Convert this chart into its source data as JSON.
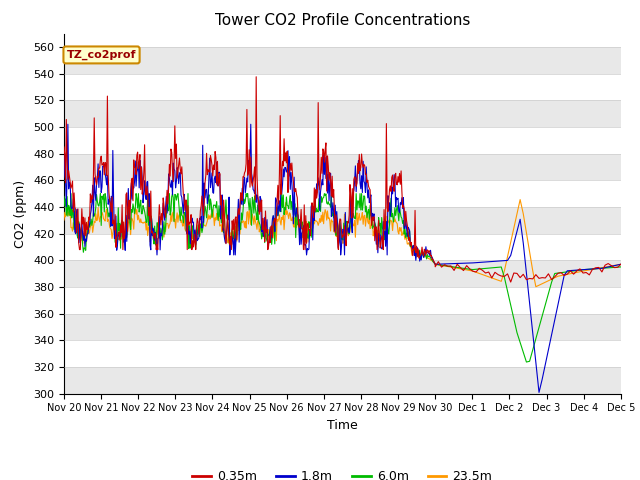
{
  "title": "Tower CO2 Profile Concentrations",
  "xlabel": "Time",
  "ylabel": "CO2 (ppm)",
  "ylim": [
    300,
    570
  ],
  "yticks": [
    300,
    320,
    340,
    360,
    380,
    400,
    420,
    440,
    460,
    480,
    500,
    520,
    540,
    560
  ],
  "xtick_labels": [
    "Nov 20",
    "Nov 21",
    "Nov 22",
    "Nov 23",
    "Nov 24",
    "Nov 25",
    "Nov 26",
    "Nov 27",
    "Nov 28",
    "Nov 29",
    "Nov 30",
    "Dec 1",
    "Dec 2",
    "Dec 3",
    "Dec 4",
    "Dec 5"
  ],
  "series_colors": [
    "#cc0000",
    "#0000cc",
    "#00bb00",
    "#ff9900"
  ],
  "series_labels": [
    "0.35m",
    "1.8m",
    "6.0m",
    "23.5m"
  ],
  "legend_label": "TZ_co2prof",
  "legend_box_facecolor": "#ffffcc",
  "legend_box_edgecolor": "#cc8800",
  "fig_bg_color": "#ffffff",
  "plot_bg_color": "#ffffff",
  "grid_color": "#dddddd",
  "alt_band_color": "#e8e8e8",
  "linewidth": 0.8
}
